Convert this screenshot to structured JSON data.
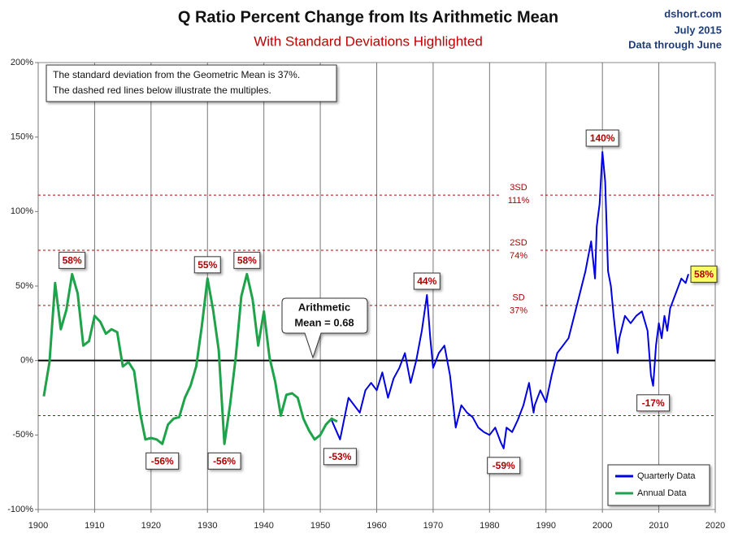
{
  "chart_data": {
    "type": "line",
    "title": "Q Ratio Percent Change from Its Arithmetic Mean",
    "subtitle": "With Standard Deviations Highlighted",
    "source": "dshort.com",
    "date": "July 2015",
    "data_through": "Data through June",
    "note": [
      "The standard deviation from the Geometric Mean is 37%.",
      "The dashed red lines below illustrate the multiples."
    ],
    "mean_callout": [
      "Arithmetic",
      "Mean = 0.68"
    ],
    "xlim": [
      1900,
      2020
    ],
    "xticks": [
      1900,
      1910,
      1920,
      1930,
      1940,
      1950,
      1960,
      1970,
      1980,
      1990,
      2000,
      2010,
      2020
    ],
    "ylim": [
      -100,
      200
    ],
    "yticks": [
      {
        "value": -100,
        "label": "-100%"
      },
      {
        "value": -50,
        "label": "-50%"
      },
      {
        "value": 0,
        "label": "0%"
      },
      {
        "value": 50,
        "label": "50%"
      },
      {
        "value": 100,
        "label": "100%"
      },
      {
        "value": 150,
        "label": "150%"
      },
      {
        "value": 200,
        "label": "200%"
      }
    ],
    "grid": "x",
    "zero_line": 0,
    "reference_lines": {
      "values": [
        111,
        74,
        37,
        -37
      ],
      "names": [
        "3SD",
        "2SD",
        "SD",
        null
      ],
      "value_labels": [
        "111%",
        "74%",
        "37%",
        null
      ],
      "color": "#c00000"
    },
    "series": [
      {
        "name": "Quarterly Data",
        "color": "#0000e0",
        "x": [
          1952,
          1953.5,
          1955,
          1957,
          1958,
          1959,
          1960,
          1961,
          1962,
          1963,
          1964,
          1965,
          1966,
          1967,
          1968,
          1968.9,
          1969.5,
          1970,
          1971,
          1972,
          1973,
          1974,
          1975,
          1976,
          1977,
          1978,
          1979,
          1980,
          1981,
          1982,
          1982.5,
          1983,
          1984,
          1985,
          1986,
          1987,
          1987.8,
          1988,
          1989,
          1990,
          1991,
          1992,
          1993,
          1994,
          1995,
          1996,
          1997,
          1998,
          1998.7,
          1999,
          1999.5,
          2000,
          2000.5,
          2001,
          2001.5,
          2002,
          2002.7,
          2003,
          2004,
          2005,
          2006,
          2007,
          2008,
          2008.6,
          2009,
          2009.5,
          2010,
          2010.5,
          2011,
          2011.5,
          2012,
          2013,
          2014,
          2014.75,
          2015.25
        ],
        "values": [
          -40,
          -53,
          -25,
          -35,
          -20,
          -15,
          -20,
          -8,
          -25,
          -12,
          -5,
          5,
          -15,
          0,
          20,
          44,
          15,
          -5,
          5,
          10,
          -10,
          -45,
          -30,
          -35,
          -38,
          -45,
          -48,
          -50,
          -45,
          -55,
          -59,
          -45,
          -48,
          -40,
          -30,
          -15,
          -35,
          -30,
          -20,
          -28,
          -10,
          5,
          10,
          15,
          30,
          45,
          60,
          80,
          55,
          90,
          105,
          140,
          120,
          60,
          50,
          30,
          5,
          15,
          30,
          25,
          30,
          33,
          20,
          -10,
          -17,
          10,
          25,
          15,
          30,
          20,
          35,
          45,
          55,
          52,
          58
        ]
      },
      {
        "name": "Annual Data",
        "color": "#1fa34a",
        "x": [
          1901,
          1902,
          1903,
          1904,
          1905,
          1906,
          1907,
          1908,
          1909,
          1910,
          1911,
          1912,
          1913,
          1914,
          1915,
          1916,
          1917,
          1918,
          1919,
          1920,
          1921,
          1922,
          1923,
          1924,
          1925,
          1926,
          1927,
          1928,
          1929,
          1930,
          1931,
          1932,
          1933,
          1934,
          1935,
          1936,
          1937,
          1938,
          1939,
          1940,
          1941,
          1942,
          1943,
          1944,
          1945,
          1946,
          1947,
          1948,
          1949,
          1950,
          1951,
          1952,
          1953
        ],
        "values": [
          -24,
          -1,
          52,
          21,
          34,
          58,
          45,
          10,
          13,
          30,
          26,
          18,
          21,
          19,
          -4,
          -1,
          -7,
          -34,
          -53,
          -52,
          -53,
          -56,
          -43,
          -39,
          -38,
          -25,
          -17,
          -4,
          23,
          55,
          34,
          7,
          -56,
          -30,
          2,
          43,
          58,
          41,
          10,
          33,
          2,
          -14,
          -37,
          -23,
          -22,
          -25,
          -39,
          -47,
          -53,
          -50,
          -43,
          -39,
          -41
        ]
      }
    ],
    "annotations": [
      {
        "x": 1906,
        "value": 58,
        "label": "58%"
      },
      {
        "x": 1922,
        "value": -56,
        "label": "-56%"
      },
      {
        "x": 1930,
        "value": 55,
        "label": "55%"
      },
      {
        "x": 1933,
        "value": -56,
        "label": "-56%"
      },
      {
        "x": 1937,
        "value": 58,
        "label": "58%"
      },
      {
        "x": 1953.5,
        "value": -53,
        "label": "-53%"
      },
      {
        "x": 1968.9,
        "value": 44,
        "label": "44%"
      },
      {
        "x": 1982.5,
        "value": -59,
        "label": "-59%"
      },
      {
        "x": 2000,
        "value": 140,
        "label": "140%"
      },
      {
        "x": 2009,
        "value": -17,
        "label": "-17%"
      },
      {
        "x": 2015.25,
        "value": 58,
        "label": "58%"
      }
    ]
  }
}
